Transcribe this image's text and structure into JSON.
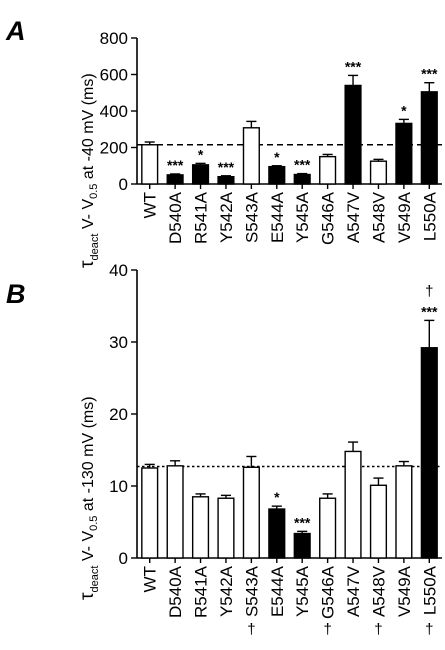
{
  "chart_data": [
    {
      "panel": "A",
      "type": "bar",
      "ylabel_main": "τ",
      "ylabel_sub": "deact",
      "ylabel_rest": "V- V",
      "ylabel_sub2": "0.5",
      "ylabel_end": "at -40 mV (ms)",
      "ylim": [
        0,
        800
      ],
      "yticks": [
        "0",
        "200",
        "400",
        "600",
        "800"
      ],
      "reference_line": 215,
      "categories": [
        "WT",
        "D540A",
        "R541A",
        "Y542A",
        "S543A",
        "E544A",
        "Y545A",
        "G546A",
        "A547V",
        "A548V",
        "V549A",
        "L550A"
      ],
      "values": [
        215,
        50,
        105,
        40,
        308,
        95,
        52,
        150,
        540,
        125,
        332,
        505
      ],
      "errors": [
        15,
        5,
        8,
        5,
        35,
        5,
        5,
        12,
        55,
        10,
        22,
        50
      ],
      "filled": [
        false,
        true,
        true,
        true,
        false,
        true,
        true,
        false,
        true,
        false,
        true,
        true
      ],
      "significance": [
        "",
        "***",
        "*",
        "***",
        "",
        "*",
        "***",
        "",
        "***",
        "",
        "*",
        "***"
      ],
      "dagger": [
        "",
        "",
        "",
        "",
        "",
        "",
        "",
        "",
        "",
        "",
        "",
        "†"
      ]
    },
    {
      "panel": "B",
      "type": "bar",
      "ylabel_main": "τ",
      "ylabel_sub": "deact",
      "ylabel_rest": "V- V",
      "ylabel_sub2": "0.5",
      "ylabel_end": "at -130 mV (ms)",
      "ylim": [
        0,
        40
      ],
      "yticks": [
        "0",
        "10",
        "20",
        "30",
        "40"
      ],
      "reference_line": 12.7,
      "categories": [
        "WT",
        "D540A",
        "R541A",
        "Y542A",
        "S543A",
        "E544A",
        "Y545A",
        "G546A",
        "A547V",
        "A548V",
        "V549A",
        "L550A"
      ],
      "values": [
        12.5,
        12.8,
        8.5,
        8.3,
        12.6,
        6.8,
        3.4,
        8.3,
        14.8,
        10.1,
        12.8,
        29.2
      ],
      "errors": [
        0.5,
        0.7,
        0.4,
        0.4,
        1.5,
        0.4,
        0.3,
        0.6,
        1.3,
        1.0,
        0.6,
        3.8
      ],
      "filled": [
        false,
        false,
        false,
        false,
        false,
        true,
        true,
        false,
        false,
        false,
        false,
        true
      ],
      "significance": [
        "",
        "",
        "",
        "",
        "",
        "*",
        "***",
        "",
        "",
        "",
        "",
        "***"
      ],
      "dagger": [
        "",
        "",
        "",
        "",
        "†",
        "",
        "",
        "†",
        "",
        "†",
        "",
        "†"
      ]
    }
  ]
}
